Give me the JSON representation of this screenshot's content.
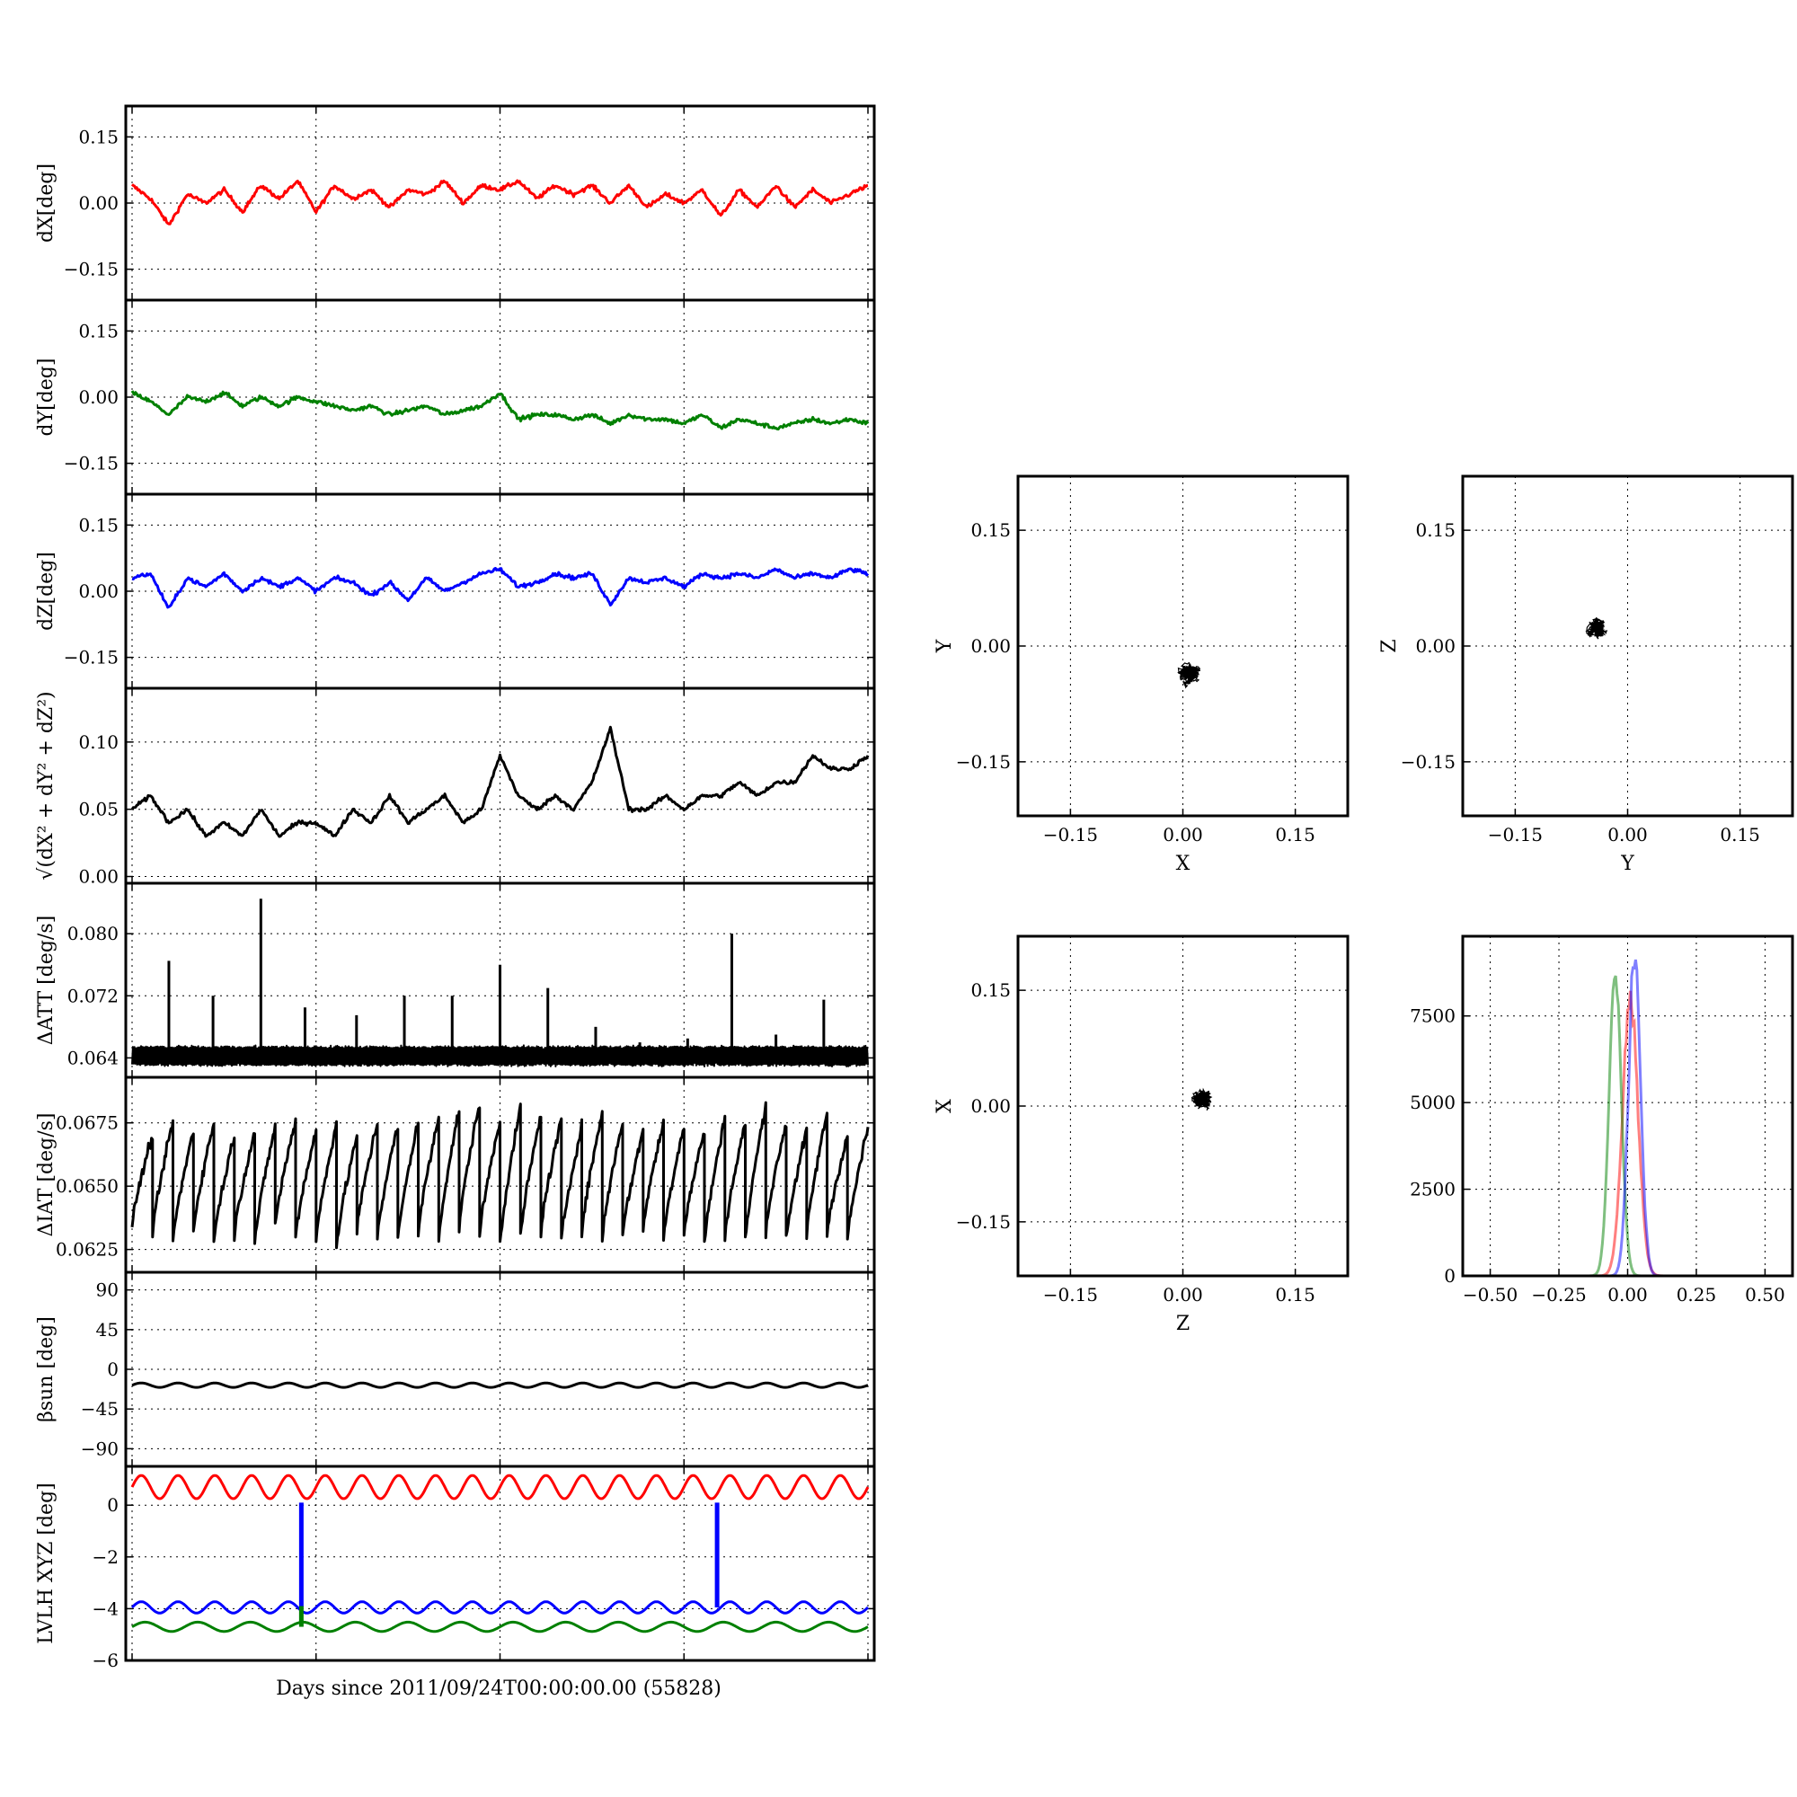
{
  "figure": {
    "xlabel_bottom": "Days since 2011/09/24T00:00:00.00 (55828)"
  },
  "chart_data": [
    {
      "id": "dX",
      "type": "line",
      "ylabel": "dX[deg]",
      "ylim": [
        -0.22,
        0.22
      ],
      "yticks": [
        0.15,
        0.0,
        -0.15
      ],
      "ytick_labels": [
        "0.15",
        "0.00",
        "−0.15"
      ],
      "series": [
        {
          "color": "#ff0000",
          "x": [
            0,
            0.5,
            1,
            1.5,
            2,
            2.5,
            3,
            3.5,
            4,
            4.5,
            5,
            5.5,
            6,
            6.5,
            7,
            7.5,
            8,
            8.5,
            9,
            9.5,
            10,
            10.5,
            11,
            11.5,
            12,
            12.5,
            13,
            13.5,
            14,
            14.5,
            15,
            15.5,
            16,
            16.5,
            17,
            17.5,
            18,
            18.5,
            19,
            19.5,
            20
          ],
          "values": [
            0.04,
            0.01,
            -0.05,
            0.02,
            0.0,
            0.03,
            -0.02,
            0.04,
            0.01,
            0.05,
            -0.02,
            0.04,
            0.01,
            0.03,
            -0.01,
            0.03,
            0.02,
            0.05,
            0.0,
            0.04,
            0.03,
            0.05,
            0.01,
            0.04,
            0.02,
            0.04,
            0.0,
            0.04,
            -0.01,
            0.02,
            0.0,
            0.03,
            -0.03,
            0.03,
            -0.01,
            0.04,
            -0.01,
            0.03,
            0.0,
            0.02,
            0.04
          ]
        }
      ]
    },
    {
      "id": "dY",
      "type": "line",
      "ylabel": "dY[deg]",
      "ylim": [
        -0.22,
        0.22
      ],
      "yticks": [
        0.15,
        0.0,
        -0.15
      ],
      "ytick_labels": [
        "0.15",
        "0.00",
        "−0.15"
      ],
      "series": [
        {
          "color": "#008000",
          "x": [
            0,
            0.5,
            1,
            1.5,
            2,
            2.5,
            3,
            3.5,
            4,
            4.5,
            5,
            5.5,
            6,
            6.5,
            7,
            7.5,
            8,
            8.5,
            9,
            9.5,
            10,
            10.5,
            11,
            11.5,
            12,
            12.5,
            13,
            13.5,
            14,
            14.5,
            15,
            15.5,
            16,
            16.5,
            17,
            17.5,
            18,
            18.5,
            19,
            19.5,
            20
          ],
          "values": [
            0.01,
            -0.01,
            -0.04,
            0.0,
            -0.01,
            0.01,
            -0.02,
            0.0,
            -0.02,
            0.0,
            -0.01,
            -0.02,
            -0.03,
            -0.02,
            -0.04,
            -0.03,
            -0.02,
            -0.04,
            -0.03,
            -0.02,
            0.01,
            -0.05,
            -0.04,
            -0.04,
            -0.05,
            -0.04,
            -0.06,
            -0.04,
            -0.05,
            -0.05,
            -0.06,
            -0.04,
            -0.07,
            -0.05,
            -0.06,
            -0.07,
            -0.06,
            -0.05,
            -0.06,
            -0.05,
            -0.06
          ]
        }
      ]
    },
    {
      "id": "dZ",
      "type": "line",
      "ylabel": "dZ[deg]",
      "ylim": [
        -0.22,
        0.22
      ],
      "yticks": [
        0.15,
        0.0,
        -0.15
      ],
      "ytick_labels": [
        "0.15",
        "0.00",
        "−0.15"
      ],
      "series": [
        {
          "color": "#0000ff",
          "x": [
            0,
            0.5,
            1,
            1.5,
            2,
            2.5,
            3,
            3.5,
            4,
            4.5,
            5,
            5.5,
            6,
            6.5,
            7,
            7.5,
            8,
            8.5,
            9,
            9.5,
            10,
            10.5,
            11,
            11.5,
            12,
            12.5,
            13,
            13.5,
            14,
            14.5,
            15,
            15.5,
            16,
            16.5,
            17,
            17.5,
            18,
            18.5,
            19,
            19.5,
            20
          ],
          "values": [
            0.03,
            0.04,
            -0.04,
            0.03,
            0.01,
            0.04,
            0.0,
            0.03,
            0.01,
            0.03,
            0.0,
            0.03,
            0.02,
            -0.01,
            0.02,
            -0.02,
            0.03,
            0.0,
            0.02,
            0.04,
            0.05,
            0.01,
            0.02,
            0.04,
            0.03,
            0.04,
            -0.03,
            0.03,
            0.02,
            0.03,
            0.01,
            0.04,
            0.03,
            0.04,
            0.03,
            0.05,
            0.03,
            0.04,
            0.03,
            0.05,
            0.04
          ]
        }
      ]
    },
    {
      "id": "rss",
      "type": "line",
      "ylabel": "√(dX² + dY² + dZ²)",
      "ylim": [
        -0.005,
        0.14
      ],
      "yticks": [
        0.1,
        0.05,
        0.0
      ],
      "ytick_labels": [
        "0.10",
        "0.05",
        "0.00"
      ],
      "series": [
        {
          "color": "#000000",
          "x": [
            0,
            0.5,
            1,
            1.5,
            2,
            2.5,
            3,
            3.5,
            4,
            4.5,
            5,
            5.5,
            6,
            6.5,
            7,
            7.5,
            8,
            8.5,
            9,
            9.5,
            10,
            10.5,
            11,
            11.5,
            12,
            12.5,
            13,
            13.5,
            14,
            14.5,
            15,
            15.5,
            16,
            16.5,
            17,
            17.5,
            18,
            18.5,
            19,
            19.5,
            20
          ],
          "values": [
            0.05,
            0.06,
            0.04,
            0.05,
            0.03,
            0.04,
            0.03,
            0.05,
            0.03,
            0.04,
            0.04,
            0.03,
            0.05,
            0.04,
            0.06,
            0.04,
            0.05,
            0.06,
            0.04,
            0.05,
            0.09,
            0.06,
            0.05,
            0.06,
            0.05,
            0.07,
            0.11,
            0.05,
            0.05,
            0.06,
            0.05,
            0.06,
            0.06,
            0.07,
            0.06,
            0.07,
            0.07,
            0.09,
            0.08,
            0.08,
            0.09
          ]
        }
      ]
    },
    {
      "id": "dATT",
      "type": "line",
      "ylabel": "ΔATT [deg/s]",
      "ylim": [
        0.0615,
        0.0865
      ],
      "yticks": [
        0.08,
        0.072,
        0.064
      ],
      "ytick_labels": [
        "0.080",
        "0.072",
        "0.064"
      ],
      "baseline": 0.0645,
      "spikes": {
        "x": [
          1,
          2.2,
          3.5,
          4.7,
          6.1,
          7.4,
          8.7,
          10,
          11.3,
          12.6,
          13.8,
          15.1,
          16.3,
          17.5,
          18.8
        ],
        "values": [
          0.0765,
          0.072,
          0.0845,
          0.0705,
          0.0695,
          0.072,
          0.072,
          0.076,
          0.073,
          0.068,
          0.066,
          0.0665,
          0.08,
          0.067,
          0.0715
        ]
      },
      "series": [
        {
          "color": "#000000"
        }
      ]
    },
    {
      "id": "dIAT",
      "type": "line",
      "ylabel": "ΔIAT [deg/s]",
      "ylim": [
        0.0616,
        0.0693
      ],
      "yticks": [
        0.0675,
        0.065,
        0.0625
      ],
      "ytick_labels": [
        "0.0675",
        "0.0650",
        "0.0625"
      ],
      "sawtooth_min": [
        0.0635,
        0.063,
        0.0628,
        0.0632,
        0.0628,
        0.063,
        0.0627,
        0.0634,
        0.063,
        0.0628,
        0.0626,
        0.0632,
        0.063,
        0.0628,
        0.0631,
        0.0629,
        0.0633,
        0.063,
        0.0627,
        0.063,
        0.0632,
        0.0628,
        0.0631,
        0.0629,
        0.063,
        0.0633,
        0.0629,
        0.0631,
        0.0627,
        0.063,
        0.0628,
        0.0632,
        0.0629,
        0.063,
        0.0631,
        0.0629
      ],
      "sawtooth_max": [
        0.067,
        0.0676,
        0.0672,
        0.0675,
        0.067,
        0.0672,
        0.0674,
        0.0676,
        0.0672,
        0.0675,
        0.067,
        0.0675,
        0.0674,
        0.0676,
        0.0677,
        0.068,
        0.0683,
        0.0676,
        0.0681,
        0.0678,
        0.0676,
        0.0674,
        0.0679,
        0.0676,
        0.0672,
        0.0675,
        0.0674,
        0.0672,
        0.0677,
        0.0675,
        0.0682,
        0.0675,
        0.0672,
        0.0679,
        0.067,
        0.0673
      ],
      "series": [
        {
          "color": "#000000"
        }
      ]
    },
    {
      "id": "beta",
      "type": "line",
      "ylabel": "βsun [deg]",
      "ylim": [
        -110,
        110
      ],
      "yticks": [
        90,
        45,
        0,
        -45,
        -90
      ],
      "ytick_labels": [
        "90",
        "45",
        "0",
        "−45",
        "−90"
      ],
      "series": [
        {
          "color": "#000000",
          "mean": -18,
          "amplitude": 2.5,
          "cycles": 20
        }
      ]
    },
    {
      "id": "lvlh",
      "type": "line",
      "ylabel": "LVLH XYZ [deg]",
      "ylim": [
        -6,
        1.5
      ],
      "yticks": [
        0,
        -2,
        -4,
        -6
      ],
      "ytick_labels": [
        "0",
        "−2",
        "−4",
        "−6"
      ],
      "series": [
        {
          "color": "#ff0000",
          "mean": 0.7,
          "amplitude": 0.45,
          "cycles": 20
        },
        {
          "color": "#0000ff",
          "mean": -3.95,
          "amplitude": 0.22,
          "cycles": 20,
          "spikes_x": [
            4.6,
            15.9
          ],
          "spike_to": 0.1
        },
        {
          "color": "#008000",
          "mean": -4.7,
          "amplitude": 0.18,
          "cycles": 14,
          "spikes_x": [
            4.6
          ],
          "spike_to": -3.9
        }
      ]
    },
    {
      "id": "scatter_xy",
      "type": "scatter",
      "xlabel": "X",
      "ylabel": "Y",
      "xlim": [
        -0.22,
        0.22
      ],
      "ylim": [
        -0.22,
        0.22
      ],
      "ticks": [
        -0.15,
        0.0,
        0.15
      ],
      "tick_labels": [
        "−0.15",
        "0.00",
        "0.15"
      ],
      "center": [
        0.01,
        -0.035
      ],
      "spread": [
        0.035,
        0.03
      ]
    },
    {
      "id": "scatter_yz",
      "type": "scatter",
      "xlabel": "Y",
      "ylabel": "Z",
      "xlim": [
        -0.22,
        0.22
      ],
      "ylim": [
        -0.22,
        0.22
      ],
      "ticks": [
        -0.15,
        0.0,
        0.15
      ],
      "tick_labels": [
        "−0.15",
        "0.00",
        "0.15"
      ],
      "center": [
        -0.04,
        0.025
      ],
      "spread": [
        0.035,
        0.025
      ]
    },
    {
      "id": "scatter_zx",
      "type": "scatter",
      "xlabel": "Z",
      "ylabel": "X",
      "xlim": [
        -0.22,
        0.22
      ],
      "ylim": [
        -0.22,
        0.22
      ],
      "ticks": [
        -0.15,
        0.0,
        0.15
      ],
      "tick_labels": [
        "−0.15",
        "0.00",
        "0.15"
      ],
      "center": [
        0.025,
        0.01
      ],
      "spread": [
        0.03,
        0.035
      ]
    },
    {
      "id": "histogram",
      "type": "line",
      "xlim": [
        -0.6,
        0.6
      ],
      "ylim": [
        0,
        9800
      ],
      "xticks": [
        -0.5,
        -0.25,
        0,
        0.25,
        0.5
      ],
      "xtick_labels": [
        "−0.50",
        "−0.25",
        "0.00",
        "0.25",
        "0.50"
      ],
      "yticks": [
        0,
        2500,
        5000,
        7500
      ],
      "ytick_labels": [
        "0",
        "2500",
        "5000",
        "7500"
      ],
      "series": [
        {
          "color": "#ff0000",
          "mean": 0.01,
          "sd": 0.028,
          "peak": 8000
        },
        {
          "color": "#008000",
          "mean": -0.045,
          "sd": 0.022,
          "peak": 8800
        },
        {
          "color": "#0000ff",
          "mean": 0.025,
          "sd": 0.022,
          "peak": 9200
        }
      ]
    }
  ]
}
